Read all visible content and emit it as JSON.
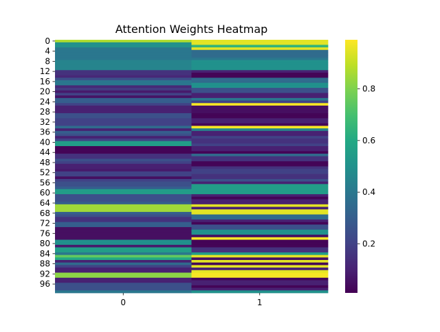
{
  "chart_data": {
    "type": "heatmap",
    "title": "Attention Weights Heatmap",
    "xlabel": "",
    "ylabel": "",
    "x_tick_labels": [
      "0",
      "1"
    ],
    "y_tick_labels": [
      "0",
      "4",
      "8",
      "12",
      "16",
      "20",
      "24",
      "28",
      "32",
      "36",
      "40",
      "44",
      "48",
      "52",
      "56",
      "60",
      "64",
      "68",
      "72",
      "76",
      "80",
      "84",
      "88",
      "92",
      "96"
    ],
    "colorbar": {
      "range": [
        0.01,
        0.99
      ],
      "ticks": [
        0.2,
        0.4,
        0.6,
        0.8
      ],
      "tick_labels": [
        "0.2",
        "0.4",
        "0.6",
        "0.8"
      ],
      "colormap": "viridis"
    },
    "rows": 100,
    "columns": [
      {
        "name": "0",
        "values": [
          0.87,
          0.5,
          0.5,
          0.4,
          0.4,
          0.4,
          0.4,
          0.4,
          0.45,
          0.45,
          0.45,
          0.45,
          0.15,
          0.15,
          0.12,
          0.25,
          0.4,
          0.4,
          0.12,
          0.18,
          0.08,
          0.2,
          0.06,
          0.3,
          0.3,
          0.2,
          0.1,
          0.1,
          0.1,
          0.25,
          0.25,
          0.2,
          0.2,
          0.2,
          0.35,
          0.1,
          0.3,
          0.25,
          0.1,
          0.2,
          0.55,
          0.55,
          0.02,
          0.02,
          0.02,
          0.15,
          0.15,
          0.25,
          0.2,
          0.1,
          0.1,
          0.08,
          0.2,
          0.2,
          0.05,
          0.2,
          0.25,
          0.25,
          0.3,
          0.55,
          0.55,
          0.25,
          0.25,
          0.25,
          0.3,
          0.85,
          0.85,
          0.85,
          0.3,
          0.25,
          0.15,
          0.15,
          0.3,
          0.3,
          0.05,
          0.05,
          0.05,
          0.05,
          0.05,
          0.5,
          0.5,
          0.08,
          0.55,
          0.55,
          0.4,
          0.75,
          0.6,
          0.1,
          0.35,
          0.2,
          0.1,
          0.1,
          0.82,
          0.82,
          0.1,
          0.1,
          0.25,
          0.25,
          0.25,
          0.4
        ]
      },
      {
        "name": "1",
        "values": [
          0.95,
          0.95,
          0.65,
          0.95,
          0.35,
          0.35,
          0.35,
          0.4,
          0.5,
          0.5,
          0.5,
          0.5,
          0.1,
          0.02,
          0.02,
          0.35,
          0.35,
          0.5,
          0.5,
          0.25,
          0.25,
          0.1,
          0.1,
          0.4,
          0.2,
          0.98,
          0.05,
          0.05,
          0.05,
          0.02,
          0.02,
          0.1,
          0.1,
          0.02,
          0.98,
          0.45,
          0.1,
          0.1,
          0.2,
          0.15,
          0.15,
          0.2,
          0.1,
          0.1,
          0.02,
          0.35,
          0.15,
          0.15,
          0.02,
          0.02,
          0.15,
          0.2,
          0.2,
          0.15,
          0.15,
          0.25,
          0.1,
          0.55,
          0.55,
          0.55,
          0.55,
          0.1,
          0.02,
          0.1,
          0.1,
          0.95,
          0.1,
          0.95,
          0.95,
          0.35,
          0.35,
          0.1,
          0.02,
          0.25,
          0.25,
          0.5,
          0.5,
          0.05,
          0.98,
          0.02,
          0.02,
          0.02,
          0.15,
          0.15,
          0.55,
          0.95,
          0.05,
          0.95,
          0.02,
          0.95,
          0.1,
          0.95,
          0.98,
          0.98,
          0.02,
          0.1,
          0.1,
          0.02,
          0.1,
          0.5
        ]
      }
    ]
  }
}
